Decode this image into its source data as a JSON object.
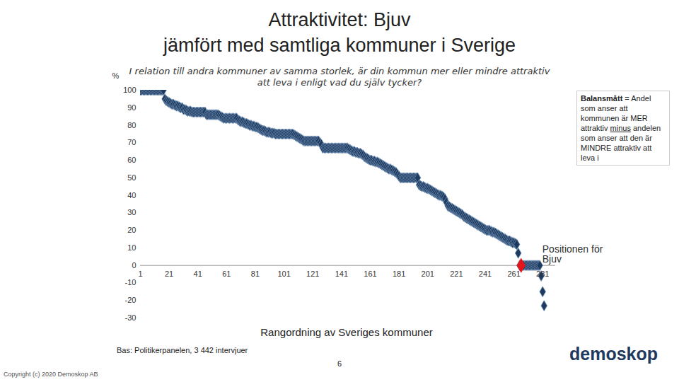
{
  "chart_data": {
    "type": "scatter",
    "title": "Attraktivitet: Bjuv\njämfört med samtliga kommuner i Sverige",
    "subtitle": "I relation till andra kommuner av samma storlek, är din kommun mer eller mindre attraktiv att leva i enligt vad du själv tycker?",
    "x_label": "Rangordning av Sveriges kommuner",
    "y_label": "%",
    "xlim": [
      1,
      290
    ],
    "xticks": [
      1,
      21,
      41,
      61,
      81,
      101,
      121,
      141,
      161,
      181,
      201,
      221,
      241,
      261,
      281
    ],
    "ylim": [
      -30,
      100
    ],
    "yticks": [
      -30,
      -20,
      -10,
      0,
      10,
      20,
      30,
      40,
      50,
      60,
      70,
      80,
      90,
      100
    ],
    "grid": false,
    "color": "#1f3a5f",
    "marker": "diamond",
    "x": [
      1,
      2,
      3,
      4,
      5,
      6,
      7,
      8,
      9,
      10,
      11,
      12,
      13,
      14,
      15,
      16,
      17,
      18,
      19,
      20,
      21,
      22,
      23,
      24,
      25,
      26,
      27,
      28,
      29,
      30,
      31,
      32,
      33,
      34,
      35,
      36,
      37,
      38,
      39,
      40,
      41,
      42,
      43,
      44,
      45,
      46,
      47,
      48,
      49,
      50,
      51,
      52,
      53,
      54,
      55,
      56,
      57,
      58,
      59,
      60,
      61,
      62,
      63,
      64,
      65,
      66,
      67,
      68,
      69,
      70,
      71,
      72,
      73,
      74,
      75,
      76,
      77,
      78,
      79,
      80,
      81,
      82,
      83,
      84,
      85,
      86,
      87,
      88,
      89,
      90,
      91,
      92,
      93,
      94,
      95,
      96,
      97,
      98,
      99,
      100,
      101,
      102,
      103,
      104,
      105,
      106,
      107,
      108,
      109,
      110,
      111,
      112,
      113,
      114,
      115,
      116,
      117,
      118,
      119,
      120,
      121,
      122,
      123,
      124,
      125,
      126,
      127,
      128,
      129,
      130,
      131,
      132,
      133,
      134,
      135,
      136,
      137,
      138,
      139,
      140,
      141,
      142,
      143,
      144,
      145,
      146,
      147,
      148,
      149,
      150,
      151,
      152,
      153,
      154,
      155,
      156,
      157,
      158,
      159,
      160,
      161,
      162,
      163,
      164,
      165,
      166,
      167,
      168,
      169,
      170,
      171,
      172,
      173,
      174,
      175,
      176,
      177,
      178,
      179,
      180,
      181,
      182,
      183,
      184,
      185,
      186,
      187,
      188,
      189,
      190,
      191,
      192,
      193,
      194,
      195,
      196,
      197,
      198,
      199,
      200,
      201,
      202,
      203,
      204,
      205,
      206,
      207,
      208,
      209,
      210,
      211,
      212,
      213,
      214,
      215,
      216,
      217,
      218,
      219,
      220,
      221,
      222,
      223,
      224,
      225,
      226,
      227,
      228,
      229,
      230,
      231,
      232,
      233,
      234,
      235,
      236,
      237,
      238,
      239,
      240,
      241,
      242,
      243,
      244,
      245,
      246,
      247,
      248,
      249,
      250,
      251,
      252,
      253,
      254,
      255,
      256,
      257,
      258,
      259,
      260,
      261,
      262,
      263,
      264,
      265,
      266,
      267,
      268,
      269,
      270,
      271,
      272,
      273,
      274,
      275,
      276,
      277,
      278,
      279,
      280,
      281,
      282
    ],
    "values": [
      100,
      100,
      100,
      100,
      100,
      100,
      100,
      100,
      100,
      100,
      100,
      100,
      100,
      100,
      100,
      100,
      100,
      95,
      94,
      93.5,
      93,
      92.5,
      92,
      92,
      91.5,
      91,
      91,
      90.5,
      90,
      90,
      89,
      89,
      88.5,
      88,
      88,
      88,
      87.5,
      87.5,
      87.5,
      87.5,
      87.5,
      87.5,
      87.5,
      87.5,
      87.5,
      87.5,
      86,
      86,
      86,
      86,
      86,
      86,
      86,
      86,
      86,
      85.5,
      85,
      84.5,
      84,
      84,
      84,
      84,
      84,
      84,
      84,
      84,
      84,
      84,
      83,
      82.5,
      82,
      82,
      81.5,
      81,
      81,
      80.5,
      80,
      80,
      79.5,
      79.5,
      79,
      79,
      78.5,
      78,
      77.5,
      77,
      77,
      76.5,
      76,
      76,
      76,
      75.5,
      75.5,
      75.5,
      75,
      75,
      75,
      75,
      75,
      75,
      75,
      75,
      75,
      75,
      75,
      75,
      75,
      74.5,
      74,
      73.5,
      73,
      72.5,
      72,
      71.5,
      71,
      71,
      71,
      71,
      71,
      71,
      71,
      71,
      71,
      71,
      71,
      70,
      69,
      67,
      67,
      67,
      67,
      67,
      67,
      67,
      67,
      67,
      67,
      67,
      67,
      67,
      67,
      67,
      67,
      67,
      67,
      66.5,
      66,
      65.5,
      65,
      65,
      64.5,
      64.5,
      64,
      64,
      63.5,
      63,
      62,
      61.5,
      61,
      60.5,
      60,
      60,
      59.5,
      59.5,
      59,
      59,
      58.5,
      58,
      57.5,
      57,
      56.5,
      56,
      55.5,
      55,
      55,
      54.5,
      54,
      53.5,
      53,
      52,
      51,
      50,
      50,
      50,
      50,
      50,
      50,
      50,
      50,
      50,
      50,
      50,
      50,
      50,
      46,
      45.5,
      45,
      45,
      44.5,
      44,
      44,
      43.5,
      43,
      42.5,
      42,
      41.5,
      41,
      40.5,
      40,
      40,
      39.5,
      39,
      38,
      36,
      34,
      33.5,
      33,
      32.5,
      32,
      31.5,
      31,
      30.5,
      30,
      29.5,
      29,
      28,
      27.5,
      27,
      26.5,
      26,
      25.5,
      25,
      24.5,
      24,
      23.5,
      23,
      22.5,
      22,
      21.5,
      21,
      20.5,
      20,
      20,
      20,
      19.5,
      19,
      19,
      18.5,
      18,
      17.5,
      17,
      16.5,
      16,
      15.5,
      15,
      14.5,
      14,
      14,
      13.5,
      13,
      13,
      12.5,
      12,
      7,
      0,
      0,
      0,
      0,
      0,
      0,
      0,
      0,
      0,
      0,
      0,
      0,
      0,
      0,
      0,
      -6,
      -15,
      -23
    ],
    "annotations": [
      {
        "text": "Positionen för Bjuv",
        "x": 266,
        "y": 0,
        "color": "#e3151a"
      }
    ],
    "note": {
      "term": "Balansmått",
      "text_before": "= Andel som anser att kommunen är MER attraktiv",
      "emphasis": "minus",
      "text_after": "andelen som anser att den är MINDRE attraktiv att leva i"
    },
    "source": "Bas: Politikerpanelen, 3 442 intervjuer",
    "page_number": "6",
    "copyright": "Copyright (c) 2020 Demoskop AB",
    "logo": "demoskop"
  }
}
